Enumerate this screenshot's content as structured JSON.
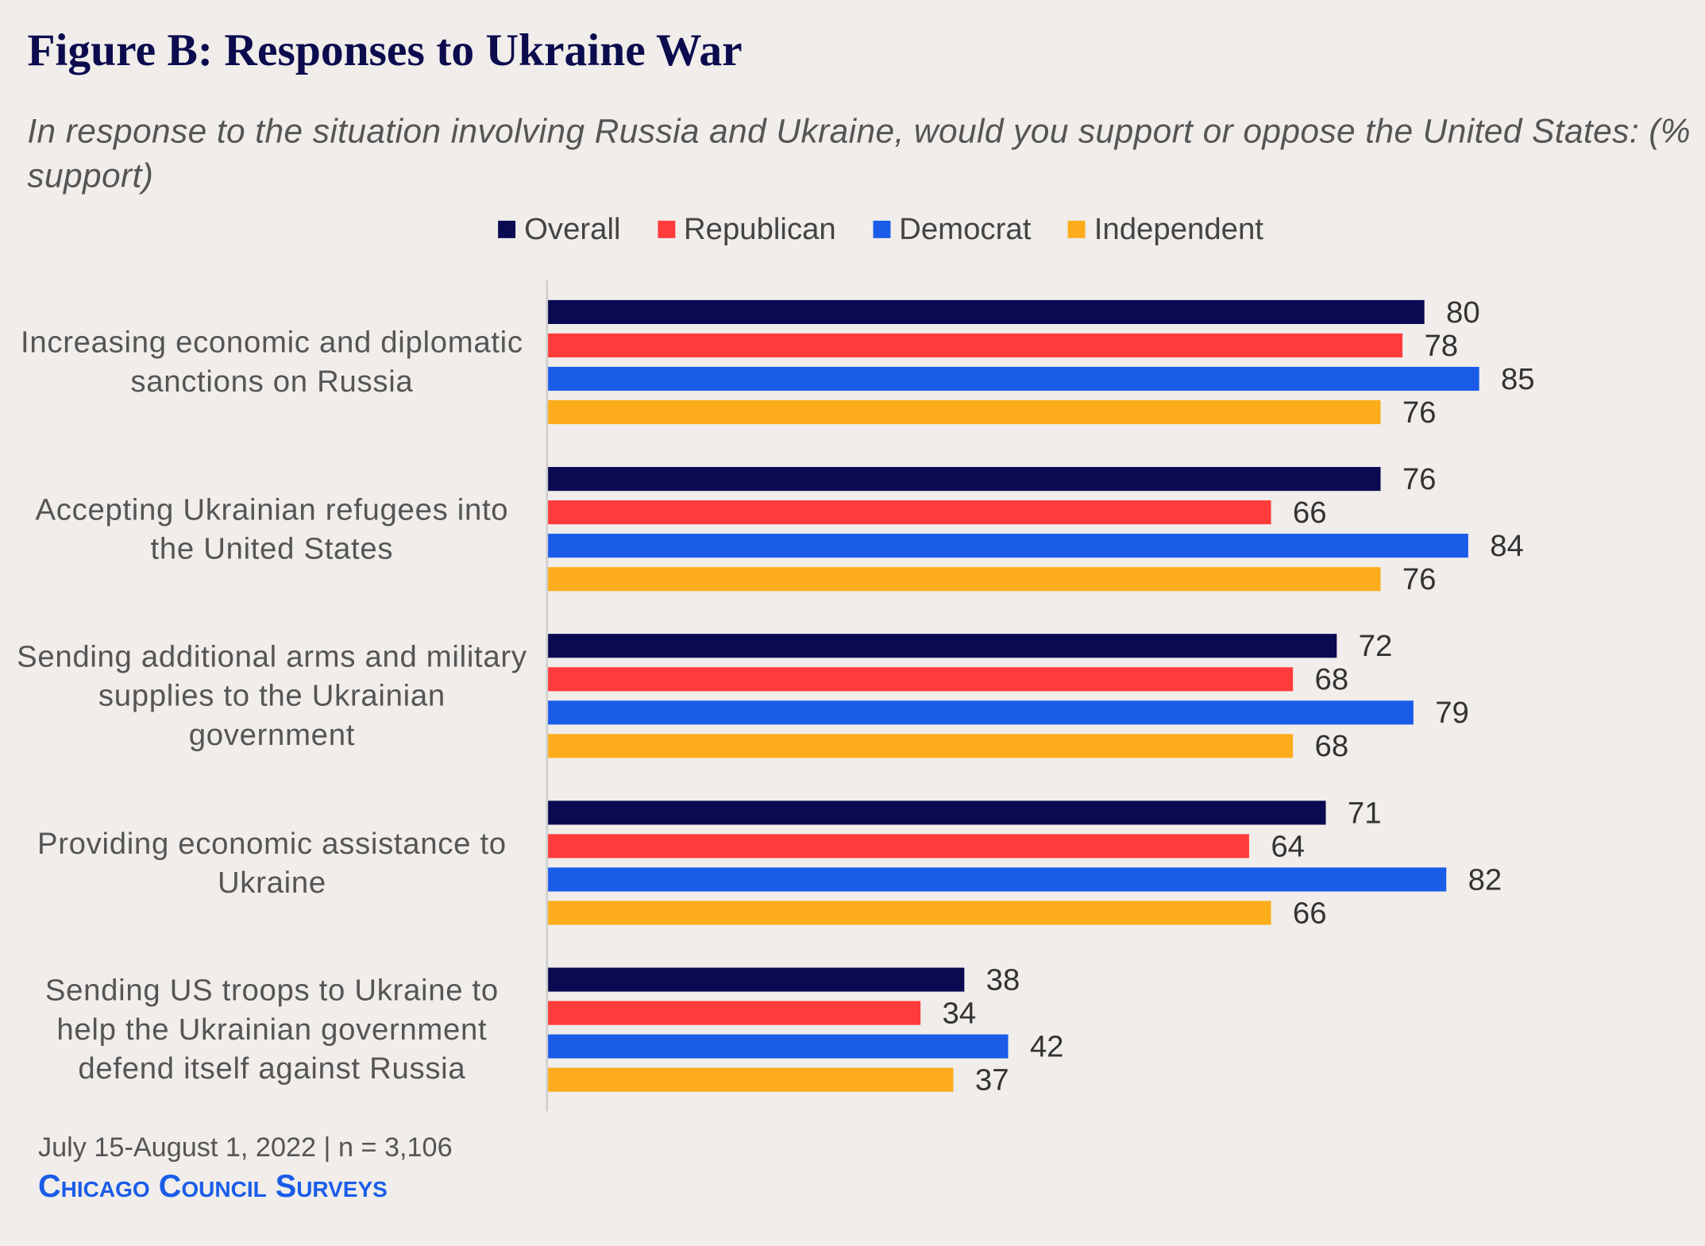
{
  "chart_data": {
    "type": "hbar",
    "title": "Figure B: Responses to Ukraine War",
    "subtitle": "In response to the situation involving Russia and Ukraine, would you support or oppose the United States: (% support)",
    "categories": [
      "Increasing economic and diplomatic sanctions on Russia",
      "Accepting Ukrainian refugees into the United States",
      "Sending additional arms and military supplies to the Ukrainian government",
      "Providing economic assistance to Ukraine",
      "Sending US troops to Ukraine to help the Ukrainian government defend itself against Russia"
    ],
    "series": [
      {
        "name": "Overall",
        "color": "#0a0a52",
        "values": [
          80,
          76,
          72,
          71,
          38
        ]
      },
      {
        "name": "Republican",
        "color": "#ff3b3b",
        "values": [
          78,
          66,
          68,
          64,
          34
        ]
      },
      {
        "name": "Democrat",
        "color": "#1a5ce8",
        "values": [
          85,
          84,
          79,
          82,
          42
        ]
      },
      {
        "name": "Independent",
        "color": "#fdac1c",
        "values": [
          76,
          76,
          68,
          66,
          37
        ]
      }
    ],
    "xlim": [
      0,
      100
    ],
    "note": "July 15-August 1, 2022 | n = 3,106",
    "source": "Chicago Council Surveys"
  }
}
